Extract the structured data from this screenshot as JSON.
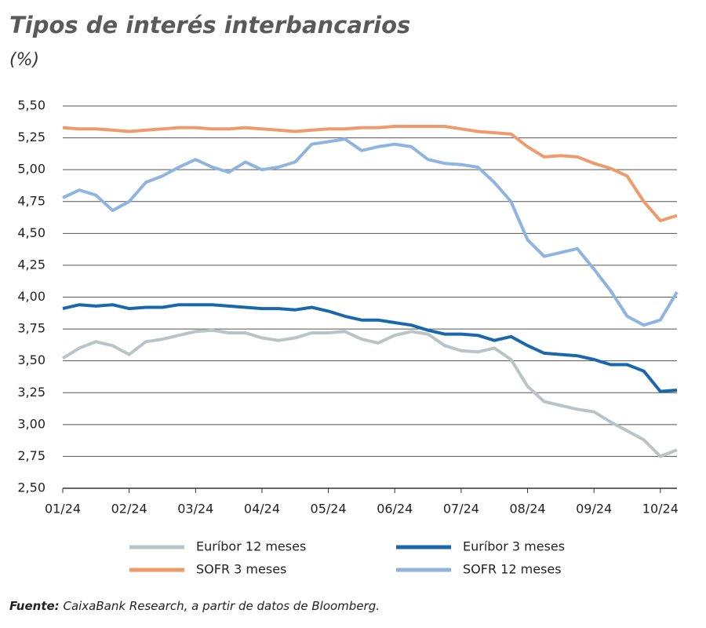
{
  "chart_data": {
    "type": "line",
    "title": "Tipos de interés interbancarios",
    "subtitle": "(%)",
    "source_label": "Fuente:",
    "source": "CaixaBank Research, a partir de datos de Bloomberg.",
    "categories": [
      "01/24",
      null,
      null,
      null,
      "02/24",
      null,
      null,
      null,
      "03/24",
      null,
      null,
      null,
      "04/24",
      null,
      null,
      null,
      "05/24",
      null,
      null,
      null,
      "06/24",
      null,
      null,
      null,
      "07/24",
      null,
      null,
      null,
      "08/24",
      null,
      null,
      null,
      "09/24",
      null,
      null,
      null,
      "10/24",
      null
    ],
    "ylim": [
      2.5,
      5.5
    ],
    "yticks": [
      {
        "value": 2.5,
        "label": "2,50"
      },
      {
        "value": 2.75,
        "label": "2,75"
      },
      {
        "value": 3,
        "label": "3,00"
      },
      {
        "value": 3.25,
        "label": "3,25"
      },
      {
        "value": 3.5,
        "label": "3,50"
      },
      {
        "value": 3.75,
        "label": "3,75"
      },
      {
        "value": 4,
        "label": "4,00"
      },
      {
        "value": 4.25,
        "label": "4,25"
      },
      {
        "value": 4.5,
        "label": "4,50"
      },
      {
        "value": 4.75,
        "label": "4,75"
      },
      {
        "value": 5,
        "label": "5,00"
      },
      {
        "value": 5.25,
        "label": "5,25"
      },
      {
        "value": 5.5,
        "label": "5,50"
      }
    ],
    "grid": true,
    "series": [
      {
        "name": "Euríbor 12 meses",
        "color": "#b9c4c6",
        "values": [
          3.52,
          3.6,
          3.65,
          3.62,
          3.55,
          3.65,
          3.67,
          3.7,
          3.73,
          3.74,
          3.72,
          3.72,
          3.68,
          3.66,
          3.68,
          3.72,
          3.72,
          3.73,
          3.67,
          3.64,
          3.7,
          3.73,
          3.71,
          3.62,
          3.58,
          3.57,
          3.6,
          3.51,
          3.3,
          3.18,
          3.15,
          3.12,
          3.1,
          3.02,
          2.95,
          2.88,
          2.75,
          2.8
        ]
      },
      {
        "name": "Euríbor 3 meses",
        "color": "#1a68ab",
        "values": [
          3.91,
          3.94,
          3.93,
          3.94,
          3.91,
          3.92,
          3.92,
          3.94,
          3.94,
          3.94,
          3.93,
          3.92,
          3.91,
          3.91,
          3.9,
          3.92,
          3.89,
          3.85,
          3.82,
          3.82,
          3.8,
          3.78,
          3.74,
          3.71,
          3.71,
          3.7,
          3.66,
          3.69,
          3.62,
          3.56,
          3.55,
          3.54,
          3.51,
          3.47,
          3.47,
          3.42,
          3.26,
          3.27
        ]
      },
      {
        "name": "SOFR 3 meses",
        "color": "#ee9a6a",
        "values": [
          5.33,
          5.32,
          5.32,
          5.31,
          5.3,
          5.31,
          5.32,
          5.33,
          5.33,
          5.32,
          5.32,
          5.33,
          5.32,
          5.31,
          5.3,
          5.31,
          5.32,
          5.32,
          5.33,
          5.33,
          5.34,
          5.34,
          5.34,
          5.34,
          5.32,
          5.3,
          5.29,
          5.28,
          5.18,
          5.1,
          5.11,
          5.1,
          5.05,
          5.01,
          4.95,
          4.75,
          4.6,
          4.64
        ]
      },
      {
        "name": "SOFR 12 meses",
        "color": "#8fb4e0",
        "values": [
          4.78,
          4.84,
          4.8,
          4.68,
          4.75,
          4.9,
          4.95,
          5.02,
          5.08,
          5.02,
          4.98,
          5.06,
          5.0,
          5.02,
          5.06,
          5.2,
          5.22,
          5.24,
          5.15,
          5.18,
          5.2,
          5.18,
          5.08,
          5.05,
          5.04,
          5.02,
          4.9,
          4.75,
          4.45,
          4.32,
          4.35,
          4.38,
          4.22,
          4.05,
          3.85,
          3.78,
          3.82,
          4.04
        ]
      }
    ]
  }
}
